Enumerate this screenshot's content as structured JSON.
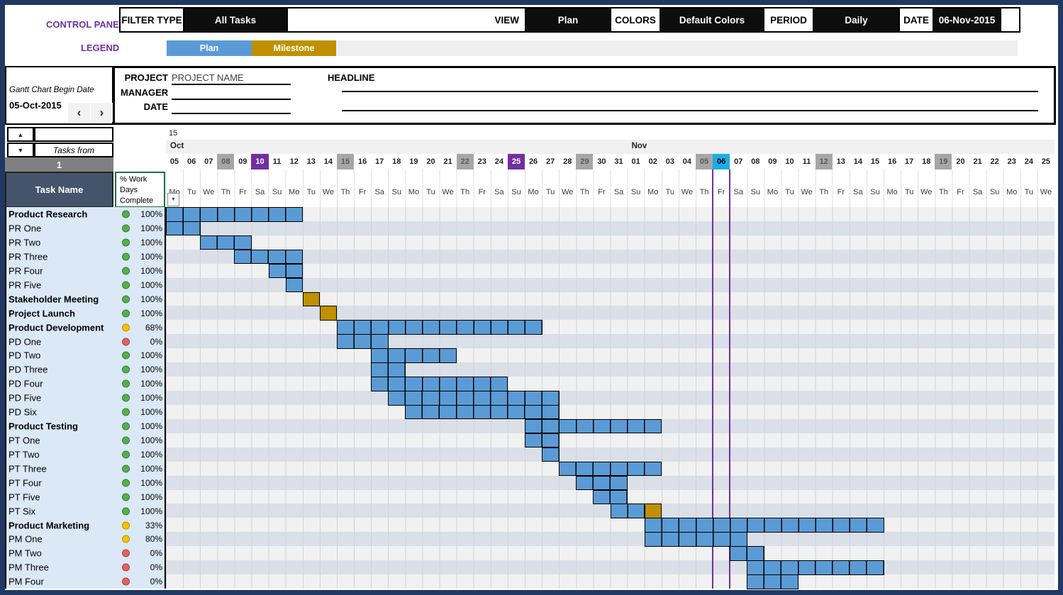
{
  "colors": {
    "frame": "#1F3864",
    "accent_purple": "#7030A0",
    "plan": "#5B9BD5",
    "milestone": "#BF9000",
    "header_slate": "#44546A",
    "today_cyan": "#1CADE4",
    "holiday_gray": "#A6A6A6",
    "row_light": "#F1F1F1",
    "row_dark": "#DADFE8",
    "panel_blue": "#DBE8F6",
    "status_green": "#54B04A",
    "status_yellow": "#FFC000",
    "status_red": "#E0635C"
  },
  "control_panel": {
    "title": "CONTROL PANEL",
    "filter_type_label": "FILTER TYPE",
    "filter_type_value": "All Tasks",
    "view_label": "VIEW",
    "view_value": "Plan",
    "colors_label": "COLORS",
    "colors_value": "Default Colors",
    "period_label": "PERIOD",
    "period_value": "Daily",
    "date_label": "DATE",
    "date_value": "06-Nov-2015"
  },
  "legend": {
    "title": "LEGEND",
    "items": [
      {
        "label": "Plan",
        "color": "#5B9BD5"
      },
      {
        "label": "Milestone",
        "color": "#BF9000"
      }
    ]
  },
  "project_info": {
    "begin_date_label": "Gantt Chart Begin Date",
    "begin_date": "05-Oct-2015",
    "project_label": "PROJECT",
    "project_value": "PROJECT NAME",
    "manager_label": "MANAGER",
    "manager_value": "",
    "date_label": "DATE",
    "date_value": "",
    "headline_label": "HEADLINE",
    "headline_value": ""
  },
  "task_controls": {
    "tasks_from_label": "Tasks from",
    "tasks_from_value": "1"
  },
  "table": {
    "task_header": "Task Name",
    "pct_header": "% Work\nDays\nComplete"
  },
  "calendar": {
    "year_label": "15",
    "months": [
      {
        "name": "Oct",
        "days": 27
      },
      {
        "name": "Nov",
        "days": 25
      }
    ],
    "day_numbers": [
      "05",
      "06",
      "07",
      "08",
      "09",
      "10",
      "11",
      "12",
      "13",
      "14",
      "15",
      "16",
      "17",
      "18",
      "19",
      "20",
      "21",
      "22",
      "23",
      "24",
      "25",
      "26",
      "27",
      "28",
      "29",
      "30",
      "31",
      "01",
      "02",
      "03",
      "04",
      "05",
      "06",
      "07",
      "08",
      "09",
      "10",
      "11",
      "12",
      "13",
      "14",
      "15",
      "16",
      "17",
      "18",
      "19",
      "20",
      "21",
      "22",
      "23",
      "24",
      "25"
    ],
    "day_names": [
      "Mo",
      "Tu",
      "We",
      "Th",
      "Fr",
      "Sa",
      "Su",
      "Mo",
      "Tu",
      "We",
      "Th",
      "Fr",
      "Sa",
      "Su",
      "Mo",
      "Tu",
      "We",
      "Th",
      "Fr",
      "Sa",
      "Su",
      "Mo",
      "Tu",
      "We",
      "Th",
      "Fr",
      "Sa",
      "Su",
      "Mo",
      "Tu",
      "We",
      "Th",
      "Fr",
      "Sa",
      "Su",
      "Mo",
      "Tu",
      "We",
      "Th",
      "Fr",
      "Sa",
      "Su",
      "Mo",
      "Tu",
      "We",
      "Th",
      "Fr",
      "Sa",
      "Su",
      "Mo",
      "Tu",
      "We"
    ],
    "gray_cols": [
      4,
      11,
      18,
      25,
      32,
      39,
      46
    ],
    "purple_cols": [
      6,
      21
    ],
    "today_col": 33
  },
  "chart_data": {
    "type": "gantt",
    "title": "Gantt chart: Plan bars (blue) and Milestones (gold) per task, daily columns 05-Oct-2015 to 25-Nov-2015",
    "period": "Daily",
    "today": "06-Nov-2015",
    "tasks": [
      {
        "name": "Product Research",
        "bold": true,
        "status": "green",
        "pct": "100%",
        "bars": [
          {
            "start": 1,
            "end": 8,
            "type": "plan",
            "from": "Oct 05",
            "to": "Oct 12"
          }
        ]
      },
      {
        "name": "PR One",
        "bold": false,
        "status": "green",
        "pct": "100%",
        "bars": [
          {
            "start": 1,
            "end": 2,
            "type": "plan",
            "from": "Oct 05",
            "to": "Oct 06"
          }
        ]
      },
      {
        "name": "PR Two",
        "bold": false,
        "status": "green",
        "pct": "100%",
        "bars": [
          {
            "start": 3,
            "end": 5,
            "type": "plan",
            "from": "Oct 07",
            "to": "Oct 09"
          }
        ]
      },
      {
        "name": "PR Three",
        "bold": false,
        "status": "green",
        "pct": "100%",
        "bars": [
          {
            "start": 5,
            "end": 8,
            "type": "plan",
            "from": "Oct 09",
            "to": "Oct 12"
          }
        ]
      },
      {
        "name": "PR Four",
        "bold": false,
        "status": "green",
        "pct": "100%",
        "bars": [
          {
            "start": 7,
            "end": 8,
            "type": "plan",
            "from": "Oct 11",
            "to": "Oct 12"
          }
        ]
      },
      {
        "name": "PR Five",
        "bold": false,
        "status": "green",
        "pct": "100%",
        "bars": [
          {
            "start": 8,
            "end": 8,
            "type": "plan",
            "from": "Oct 12",
            "to": "Oct 12"
          }
        ]
      },
      {
        "name": "Stakeholder Meeting",
        "bold": true,
        "status": "green",
        "pct": "100%",
        "bars": [
          {
            "start": 9,
            "end": 9,
            "type": "milestone",
            "from": "Oct 13",
            "to": "Oct 13"
          }
        ]
      },
      {
        "name": "Project Launch",
        "bold": true,
        "status": "green",
        "pct": "100%",
        "bars": [
          {
            "start": 10,
            "end": 10,
            "type": "milestone",
            "from": "Oct 14",
            "to": "Oct 14"
          }
        ]
      },
      {
        "name": "Product Development",
        "bold": true,
        "status": "yellow",
        "pct": "68%",
        "bars": [
          {
            "start": 11,
            "end": 22,
            "type": "plan",
            "from": "Oct 15",
            "to": "Oct 26"
          }
        ]
      },
      {
        "name": "PD One",
        "bold": false,
        "status": "red",
        "pct": "0%",
        "bars": [
          {
            "start": 11,
            "end": 13,
            "type": "plan",
            "from": "Oct 15",
            "to": "Oct 17"
          }
        ]
      },
      {
        "name": "PD Two",
        "bold": false,
        "status": "green",
        "pct": "100%",
        "bars": [
          {
            "start": 13,
            "end": 17,
            "type": "plan",
            "from": "Oct 17",
            "to": "Oct 21"
          }
        ]
      },
      {
        "name": "PD Three",
        "bold": false,
        "status": "green",
        "pct": "100%",
        "bars": [
          {
            "start": 13,
            "end": 14,
            "type": "plan",
            "from": "Oct 17",
            "to": "Oct 18"
          }
        ]
      },
      {
        "name": "PD Four",
        "bold": false,
        "status": "green",
        "pct": "100%",
        "bars": [
          {
            "start": 13,
            "end": 20,
            "type": "plan",
            "from": "Oct 17",
            "to": "Oct 24"
          }
        ]
      },
      {
        "name": "PD Five",
        "bold": false,
        "status": "green",
        "pct": "100%",
        "bars": [
          {
            "start": 14,
            "end": 23,
            "type": "plan",
            "from": "Oct 18",
            "to": "Oct 27"
          }
        ]
      },
      {
        "name": "PD Six",
        "bold": false,
        "status": "green",
        "pct": "100%",
        "bars": [
          {
            "start": 15,
            "end": 23,
            "type": "plan",
            "from": "Oct 19",
            "to": "Oct 27"
          }
        ]
      },
      {
        "name": "Product Testing",
        "bold": true,
        "status": "green",
        "pct": "100%",
        "bars": [
          {
            "start": 22,
            "end": 29,
            "type": "plan",
            "from": "Oct 26",
            "to": "Nov 02"
          }
        ]
      },
      {
        "name": "PT One",
        "bold": false,
        "status": "green",
        "pct": "100%",
        "bars": [
          {
            "start": 22,
            "end": 23,
            "type": "plan",
            "from": "Oct 26",
            "to": "Oct 27"
          }
        ]
      },
      {
        "name": "PT Two",
        "bold": false,
        "status": "green",
        "pct": "100%",
        "bars": [
          {
            "start": 23,
            "end": 23,
            "type": "plan",
            "from": "Oct 27",
            "to": "Oct 27"
          }
        ]
      },
      {
        "name": "PT Three",
        "bold": false,
        "status": "green",
        "pct": "100%",
        "bars": [
          {
            "start": 24,
            "end": 29,
            "type": "plan",
            "from": "Oct 28",
            "to": "Nov 02"
          }
        ]
      },
      {
        "name": "PT Four",
        "bold": false,
        "status": "green",
        "pct": "100%",
        "bars": [
          {
            "start": 25,
            "end": 27,
            "type": "plan",
            "from": "Oct 29",
            "to": "Oct 31"
          }
        ]
      },
      {
        "name": "PT Five",
        "bold": false,
        "status": "green",
        "pct": "100%",
        "bars": [
          {
            "start": 26,
            "end": 27,
            "type": "plan",
            "from": "Oct 30",
            "to": "Oct 31"
          }
        ]
      },
      {
        "name": "PT Six",
        "bold": false,
        "status": "green",
        "pct": "100%",
        "bars": [
          {
            "start": 27,
            "end": 28,
            "type": "plan",
            "from": "Oct 31",
            "to": "Nov 01"
          },
          {
            "start": 29,
            "end": 29,
            "type": "milestone",
            "from": "Nov 02",
            "to": "Nov 02"
          }
        ]
      },
      {
        "name": "Product Marketing",
        "bold": true,
        "status": "yellow",
        "pct": "33%",
        "bars": [
          {
            "start": 29,
            "end": 42,
            "type": "plan",
            "from": "Nov 02",
            "to": "Nov 15"
          }
        ]
      },
      {
        "name": "PM One",
        "bold": false,
        "status": "yellow",
        "pct": "80%",
        "bars": [
          {
            "start": 29,
            "end": 34,
            "type": "plan",
            "from": "Nov 02",
            "to": "Nov 07"
          }
        ]
      },
      {
        "name": "PM Two",
        "bold": false,
        "status": "red",
        "pct": "0%",
        "bars": [
          {
            "start": 34,
            "end": 35,
            "type": "plan",
            "from": "Nov 07",
            "to": "Nov 08"
          }
        ]
      },
      {
        "name": "PM Three",
        "bold": false,
        "status": "red",
        "pct": "0%",
        "bars": [
          {
            "start": 35,
            "end": 42,
            "type": "plan",
            "from": "Nov 08",
            "to": "Nov 15"
          }
        ]
      },
      {
        "name": "PM Four",
        "bold": false,
        "status": "red",
        "pct": "0%",
        "bars": [
          {
            "start": 35,
            "end": 37,
            "type": "plan",
            "from": "Nov 08",
            "to": "Nov 10"
          }
        ]
      }
    ]
  }
}
